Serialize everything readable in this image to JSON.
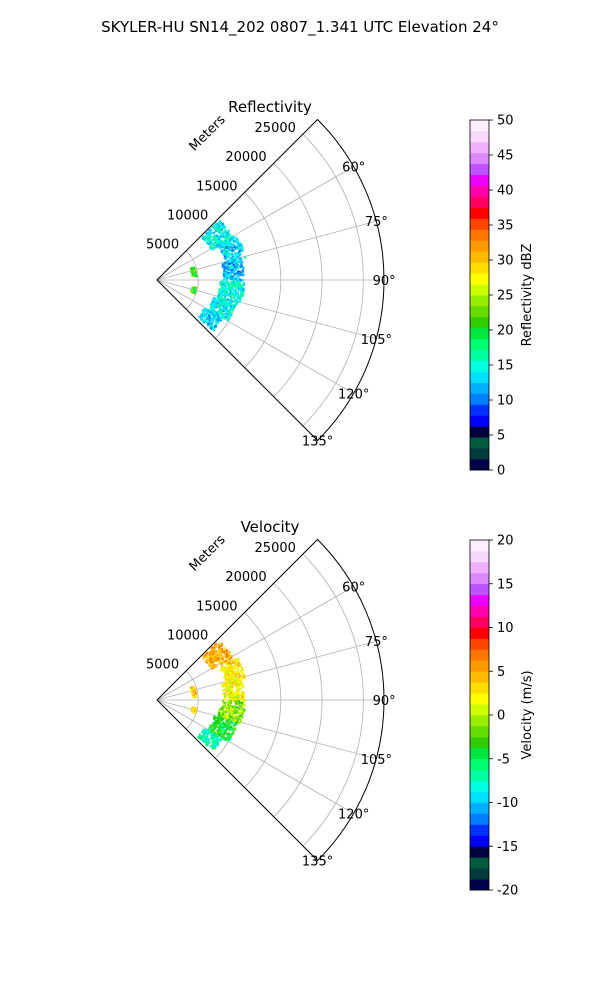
{
  "figure": {
    "suptitle": "SKYLER-HU  SN14_202  0807_1.341 UTC Elevation 24°"
  },
  "chart_data": [
    {
      "type": "polar-sector",
      "title": "Reflectivity",
      "radial_label": "Meters",
      "theta_ticks": [
        "60°",
        "75°",
        "90°",
        "105°",
        "120°",
        "135°"
      ],
      "theta_tick_values": [
        60,
        75,
        90,
        105,
        120,
        135
      ],
      "theta_range": [
        45,
        135
      ],
      "r_ticks": [
        "5000",
        "10000",
        "15000",
        "20000",
        "25000"
      ],
      "r_tick_values": [
        5000,
        10000,
        15000,
        20000,
        25000
      ],
      "r_range": [
        0,
        27500
      ],
      "grid": true,
      "colorbar": {
        "label": "Reflectivity dBZ",
        "range": [
          0,
          50
        ],
        "ticks": [
          "0",
          "5",
          "10",
          "15",
          "20",
          "25",
          "30",
          "35",
          "40",
          "45",
          "50"
        ],
        "tick_values": [
          0,
          5,
          10,
          15,
          20,
          25,
          30,
          35,
          40,
          45,
          50
        ],
        "colors": [
          "#00004c",
          "#003a3a",
          "#005a3c",
          "#00003f",
          "#0000ff",
          "#0030ff",
          "#0080ff",
          "#00b0ff",
          "#00e0ff",
          "#00ffe0",
          "#00ffa0",
          "#00ff70",
          "#00e640",
          "#30cc00",
          "#66dd00",
          "#99ee00",
          "#ccff00",
          "#ffff00",
          "#ffdd00",
          "#ffbb00",
          "#ff9900",
          "#ff7700",
          "#ff4400",
          "#ff0000",
          "#ff0060",
          "#ff00aa",
          "#ee00ff",
          "#bb55ff",
          "#dd88ff",
          "#f0b0ff",
          "#f8d8ff",
          "#ffeeff"
        ]
      },
      "echoes": [
        {
          "theta0": 45,
          "theta1": 60,
          "r0": 7500,
          "r1": 10500,
          "value": 14
        },
        {
          "theta0": 60,
          "theta1": 75,
          "r0": 8500,
          "r1": 11000,
          "value": 13
        },
        {
          "theta0": 75,
          "theta1": 90,
          "r0": 8000,
          "r1": 10500,
          "value": 12
        },
        {
          "theta0": 90,
          "theta1": 105,
          "r0": 7500,
          "r1": 10500,
          "value": 15
        },
        {
          "theta0": 105,
          "theta1": 120,
          "r0": 7000,
          "r1": 10000,
          "value": 14
        },
        {
          "theta0": 120,
          "theta1": 132,
          "r0": 6500,
          "r1": 9000,
          "value": 13
        },
        {
          "theta0": 68,
          "theta1": 84,
          "r0": 4200,
          "r1": 4700,
          "value": 21
        },
        {
          "theta0": 100,
          "theta1": 108,
          "r0": 4200,
          "r1": 4700,
          "value": 21
        }
      ]
    },
    {
      "type": "polar-sector",
      "title": "Velocity",
      "radial_label": "Meters",
      "theta_ticks": [
        "60°",
        "75°",
        "90°",
        "105°",
        "120°",
        "135°"
      ],
      "theta_tick_values": [
        60,
        75,
        90,
        105,
        120,
        135
      ],
      "theta_range": [
        45,
        135
      ],
      "r_ticks": [
        "5000",
        "10000",
        "15000",
        "20000",
        "25000"
      ],
      "r_tick_values": [
        5000,
        10000,
        15000,
        20000,
        25000
      ],
      "r_range": [
        0,
        27500
      ],
      "grid": true,
      "colorbar": {
        "label": "Velocity (m/s)",
        "range": [
          -20,
          20
        ],
        "ticks": [
          "-20",
          "-15",
          "-10",
          "-5",
          "0",
          "5",
          "10",
          "15",
          "20"
        ],
        "tick_values": [
          -20,
          -15,
          -10,
          -5,
          0,
          5,
          10,
          15,
          20
        ],
        "colors": [
          "#00004c",
          "#003a3a",
          "#005a3c",
          "#00003f",
          "#0000ff",
          "#0030ff",
          "#0080ff",
          "#00b0ff",
          "#00e0ff",
          "#00ffe0",
          "#00ffa0",
          "#00ff70",
          "#00e640",
          "#30cc00",
          "#66dd00",
          "#99ee00",
          "#ccff00",
          "#ffff00",
          "#ffdd00",
          "#ffbb00",
          "#ff9900",
          "#ff7700",
          "#ff4400",
          "#ff0000",
          "#ff0060",
          "#ff00aa",
          "#ee00ff",
          "#bb55ff",
          "#dd88ff",
          "#f0b0ff",
          "#f8d8ff",
          "#ffeeff"
        ]
      },
      "echoes": [
        {
          "theta0": 45,
          "theta1": 60,
          "r0": 7500,
          "r1": 10500,
          "value": 5
        },
        {
          "theta0": 60,
          "theta1": 75,
          "r0": 8500,
          "r1": 11000,
          "value": 3
        },
        {
          "theta0": 75,
          "theta1": 90,
          "r0": 8000,
          "r1": 10500,
          "value": 2
        },
        {
          "theta0": 90,
          "theta1": 105,
          "r0": 7500,
          "r1": 10500,
          "value": -1
        },
        {
          "theta0": 105,
          "theta1": 120,
          "r0": 7000,
          "r1": 10000,
          "value": -4
        },
        {
          "theta0": 120,
          "theta1": 132,
          "r0": 6500,
          "r1": 9000,
          "value": -7
        },
        {
          "theta0": 68,
          "theta1": 84,
          "r0": 4200,
          "r1": 4700,
          "value": 4
        },
        {
          "theta0": 100,
          "theta1": 108,
          "r0": 4200,
          "r1": 4700,
          "value": 4
        }
      ]
    }
  ]
}
